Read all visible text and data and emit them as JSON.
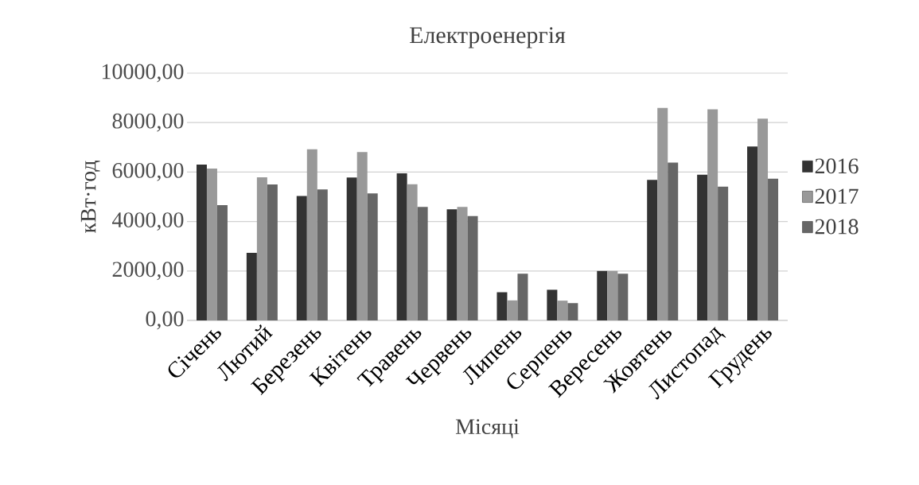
{
  "chart_data": {
    "type": "bar",
    "title": "Електроенергія",
    "xlabel": "Місяці",
    "ylabel": "кВт·год",
    "categories": [
      "Січень",
      "Лютий",
      "Березень",
      "Квітень",
      "Травень",
      "Червень",
      "Липень",
      "Серпень",
      "Вересень",
      "Жовтень",
      "Листопад",
      "Грудень"
    ],
    "series": [
      {
        "name": "2016",
        "color": "#333333",
        "values": [
          6300,
          2730,
          5030,
          5780,
          5950,
          4490,
          1140,
          1240,
          2000,
          5680,
          5890,
          7030
        ]
      },
      {
        "name": "2017",
        "color": "#999999",
        "values": [
          6140,
          5790,
          6920,
          6810,
          5510,
          4590,
          810,
          800,
          2000,
          8600,
          8540,
          8160
        ]
      },
      {
        "name": "2018",
        "color": "#666666",
        "values": [
          4660,
          5500,
          5300,
          5140,
          4590,
          4220,
          1890,
          700,
          1890,
          6380,
          5410,
          5730
        ]
      }
    ],
    "ylim": [
      0,
      10000
    ],
    "yticks": [
      {
        "value": 0,
        "label": "0,00"
      },
      {
        "value": 2000,
        "label": "2000,00"
      },
      {
        "value": 4000,
        "label": "4000,00"
      },
      {
        "value": 6000,
        "label": "6000,00"
      },
      {
        "value": 8000,
        "label": "8000,00"
      },
      {
        "value": 10000,
        "label": "10000,00"
      }
    ],
    "grid": "y",
    "legend": "right"
  }
}
